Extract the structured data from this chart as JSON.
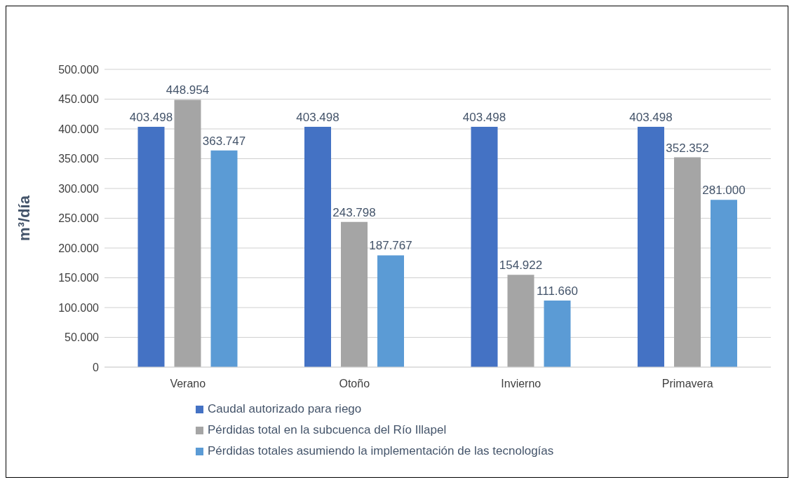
{
  "chart_data": {
    "type": "bar",
    "ylabel": "m³/día",
    "categories": [
      "Verano",
      "Otoño",
      "Invierno",
      "Primavera"
    ],
    "series": [
      {
        "name": "Caudal autorizado para riego",
        "color": "#4472c4",
        "values": [
          403498,
          403498,
          403498,
          403498
        ],
        "value_labels": [
          "403.498",
          "403.498",
          "403.498",
          "403.498"
        ]
      },
      {
        "name": "Pérdidas total en la subcuenca del Río Illapel",
        "color": "#a5a5a5",
        "values": [
          448954,
          243798,
          154922,
          352352
        ],
        "value_labels": [
          "448.954",
          "243.798",
          "154.922",
          "352.352"
        ]
      },
      {
        "name": "Pérdidas totales asumiendo la implementación de las tecnologías",
        "color": "#5b9bd5",
        "values": [
          363747,
          187767,
          111660,
          281000
        ],
        "value_labels": [
          "363.747",
          "187.767",
          "111.660",
          "281.000"
        ]
      }
    ],
    "ylim": [
      0,
      500000
    ],
    "yticks": [
      0,
      {
        "value": 50000,
        "label": "50.000"
      },
      {
        "value": 100000,
        "label": "100.000"
      },
      {
        "value": 150000,
        "label": "150.000"
      },
      {
        "value": 200000,
        "label": "200.000"
      },
      {
        "value": 250000,
        "label": "250.000"
      },
      {
        "value": 300000,
        "label": "300.000"
      },
      {
        "value": 350000,
        "label": "350.000"
      },
      {
        "value": 400000,
        "label": "400.000"
      },
      {
        "value": 450000,
        "label": "450.000"
      },
      {
        "value": 500000,
        "label": "500.000"
      }
    ],
    "grid": "y",
    "legend": "bottom"
  }
}
